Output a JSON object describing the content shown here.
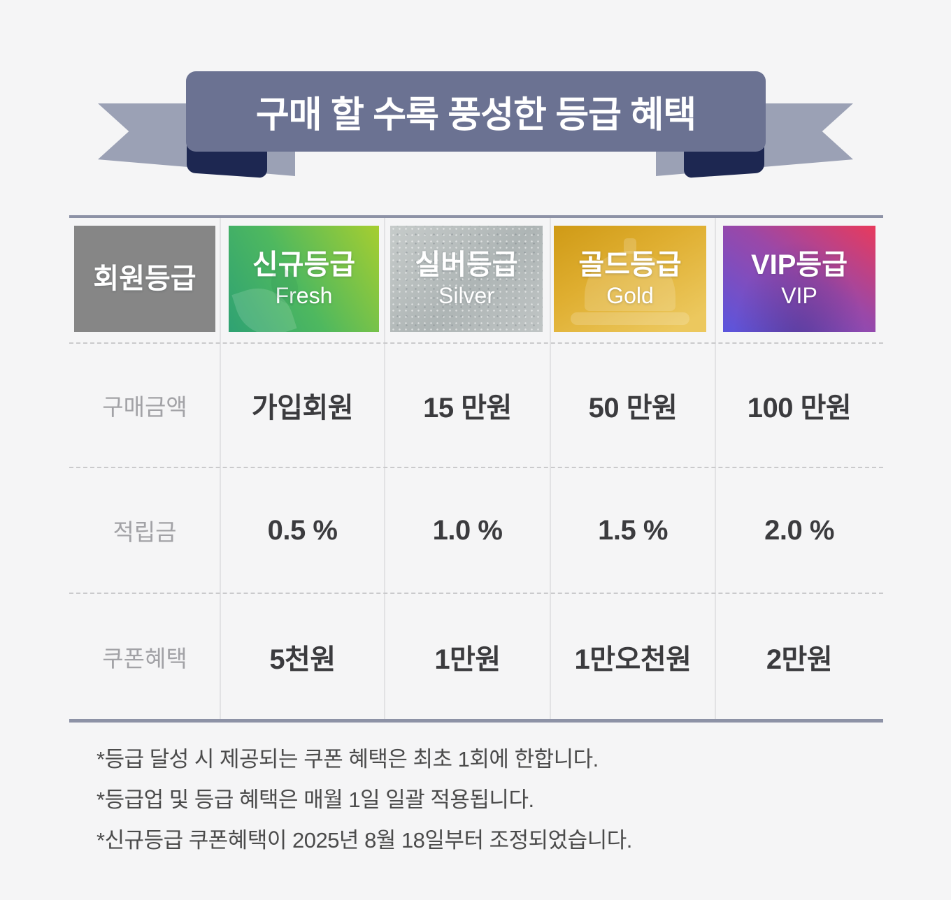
{
  "banner": {
    "title": "구매 할 수록 풍성한 등급 혜택"
  },
  "table": {
    "corner_label": "회원등급",
    "tiers": [
      {
        "name": "신규등급",
        "sub": "Fresh"
      },
      {
        "name": "실버등급",
        "sub": "Silver"
      },
      {
        "name": "골드등급",
        "sub": "Gold"
      },
      {
        "name": "VIP등급",
        "sub": "VIP"
      }
    ],
    "rows": [
      {
        "label": "구매금액",
        "values": [
          "가입회원",
          "15 만원",
          "50 만원",
          "100 만원"
        ]
      },
      {
        "label": "적립금",
        "values": [
          "0.5 %",
          "1.0 %",
          "1.5 %",
          "2.0 %"
        ]
      },
      {
        "label": "쿠폰혜택",
        "values": [
          "5천원",
          "1만원",
          "1만오천원",
          "2만원"
        ]
      }
    ]
  },
  "notes": [
    "*등급 달성 시 제공되는 쿠폰 혜택은 최초 1회에 한합니다.",
    "*등급업 및 등급 혜택은 매월 1일 일괄 적용됩니다.",
    "*신규등급 쿠폰혜택이 2025년 8월 18일부터 조정되었습니다."
  ],
  "colors": {
    "background": "#f5f5f6",
    "banner": "#6b7292",
    "ribbon_tail": "#9ba1b5",
    "ribbon_fold": "#1d2751",
    "table_border": "#8d92a6",
    "corner_cell": "#868686",
    "fresh_gradient": [
      "#2fa273",
      "#a6ce30"
    ],
    "silver_gradient": [
      "#c6cbca",
      "#aeb5b5"
    ],
    "gold_gradient": [
      "#cf9a16",
      "#ecc85e"
    ],
    "vip_gradient": [
      "#5a55dd",
      "#e83a5c"
    ],
    "value_text": "#3b3b3e",
    "label_text": "#a2a2a6",
    "note_text": "#4b4b4b"
  }
}
